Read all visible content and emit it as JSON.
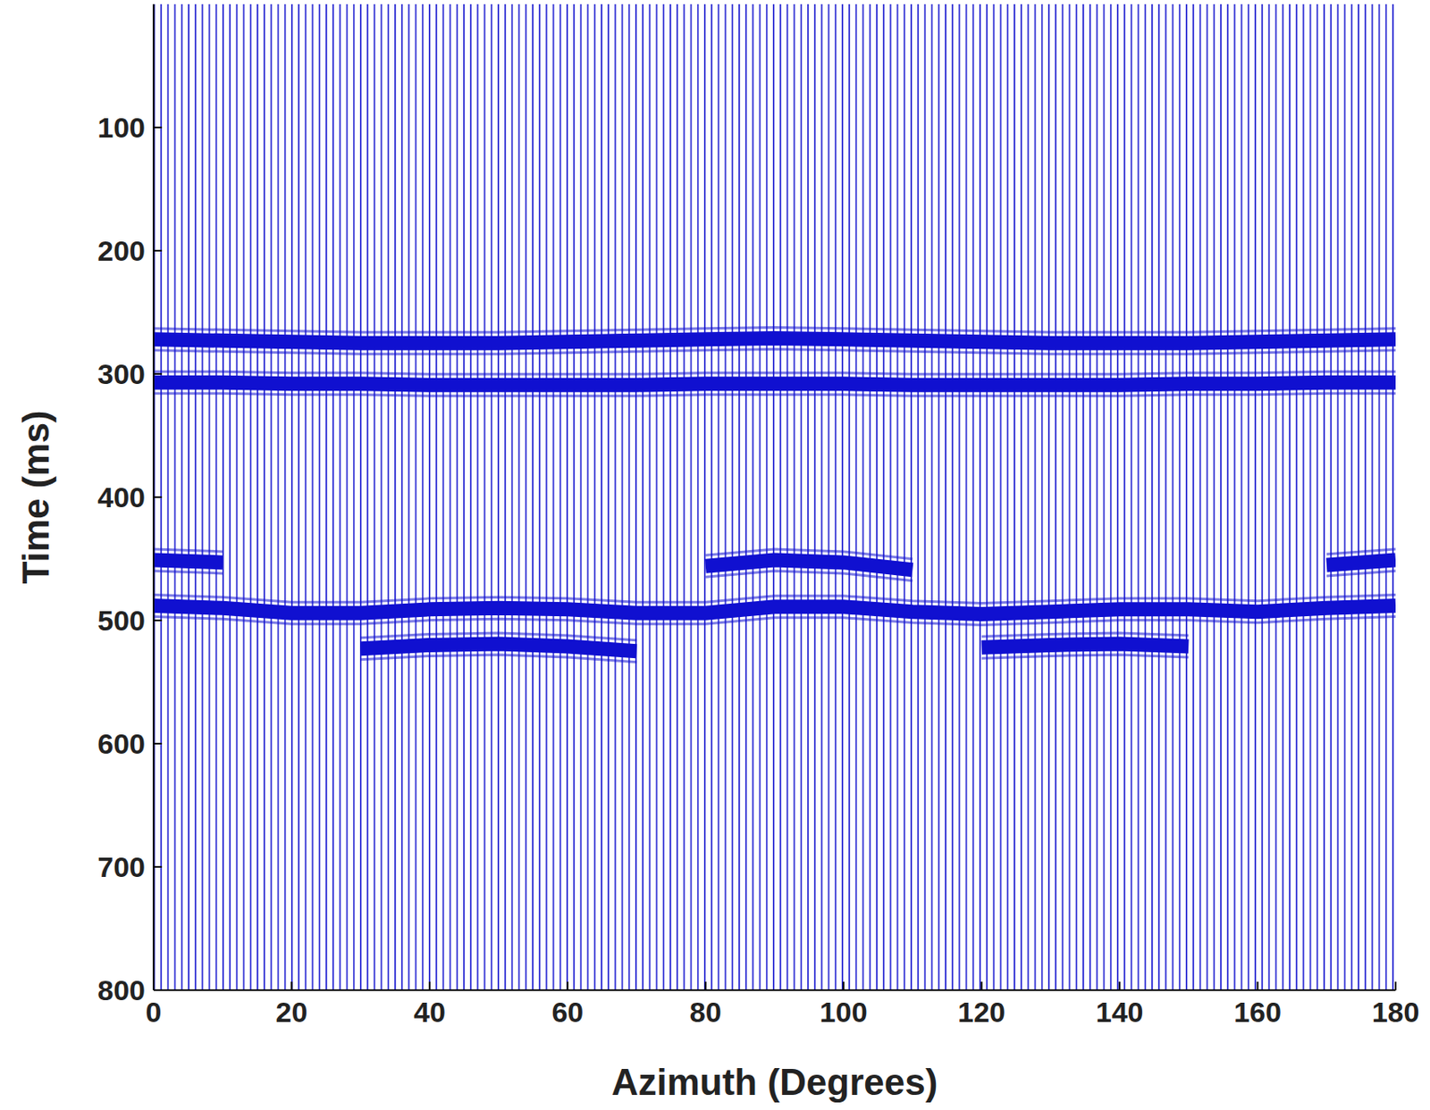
{
  "chart_data": {
    "type": "line",
    "x_label": "Azimuth (Degrees)",
    "y_label": "Time (ms)",
    "xlim": [
      0,
      180
    ],
    "xticks": [
      0,
      20,
      40,
      60,
      80,
      100,
      120,
      140,
      160,
      180
    ],
    "ylim": [
      0,
      800
    ],
    "yticks": [
      100,
      200,
      300,
      400,
      500,
      600,
      700,
      800
    ],
    "x": [
      0,
      10,
      20,
      30,
      40,
      50,
      60,
      70,
      80,
      90,
      100,
      110,
      120,
      130,
      140,
      150,
      160,
      170,
      180
    ],
    "series": [
      {
        "color": "#1010d0",
        "values": [
          272,
          273,
          274,
          275,
          275,
          275,
          274,
          273,
          272,
          271,
          272,
          273,
          274,
          275,
          275,
          275,
          274,
          273,
          272
        ]
      },
      {
        "color": "#1010d0",
        "values": [
          307,
          307,
          308,
          308,
          309,
          309,
          309,
          309,
          308,
          308,
          308,
          309,
          309,
          309,
          309,
          308,
          308,
          307,
          307
        ]
      },
      {
        "color": "#1010d0",
        "values": [
          451,
          453,
          null,
          null,
          null,
          null,
          null,
          null,
          456,
          451,
          453,
          459,
          null,
          null,
          null,
          null,
          null,
          455,
          451
        ]
      },
      {
        "color": "#1010d0",
        "values": [
          488,
          490,
          494,
          494,
          491,
          490,
          491,
          494,
          494,
          489,
          489,
          493,
          495,
          493,
          491,
          491,
          493,
          490,
          488
        ]
      },
      {
        "color": "#1010d0",
        "values": [
          null,
          null,
          null,
          523,
          520,
          519,
          521,
          525,
          null,
          null,
          null,
          null,
          522,
          520,
          519,
          521,
          null,
          null,
          null
        ]
      }
    ]
  }
}
